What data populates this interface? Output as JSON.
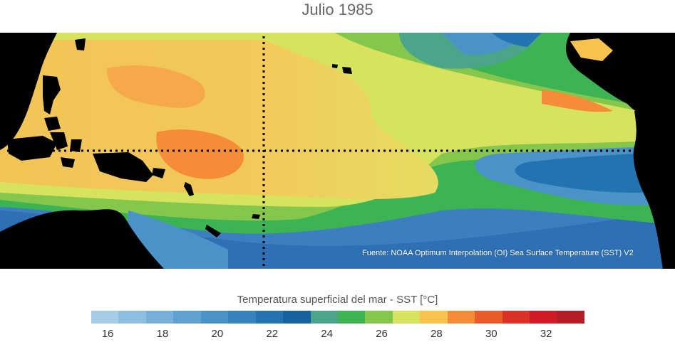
{
  "title": "Julio 1985",
  "source": "Fuente: NOAA Optimum Interpolation (OI) Sea Surface Temperature (SST) V2",
  "colorbar": {
    "label": "Temperatura superficial del mar - SST  [°C]",
    "colors": [
      "#a6cde6",
      "#8ebfe0",
      "#77b1d9",
      "#5fa2d1",
      "#4a93c8",
      "#3683bd",
      "#2473b1",
      "#16629f",
      "#4aa58b",
      "#3db453",
      "#85c64d",
      "#d7e35f",
      "#f8c24f",
      "#f48c38",
      "#ea5b2c",
      "#da3227",
      "#cf1b26",
      "#b51e24"
    ],
    "ticks": [
      "16",
      "18",
      "20",
      "22",
      "24",
      "26",
      "28",
      "30",
      "32"
    ]
  }
}
